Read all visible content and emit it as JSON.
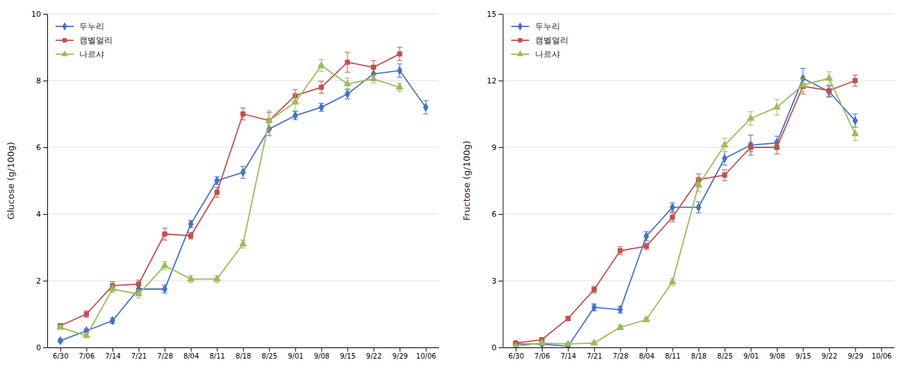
{
  "chart_data": [
    {
      "type": "line",
      "categories": [
        "6/30",
        "7/06",
        "7/14",
        "7/21",
        "7/28",
        "8/04",
        "8/11",
        "8/18",
        "8/25",
        "9/01",
        "9/08",
        "9/15",
        "9/22",
        "9/29",
        "10/06"
      ],
      "series": [
        {
          "name": "두누리",
          "color": "#4472C4",
          "marker": "diamond",
          "values": [
            0.2,
            0.5,
            0.8,
            1.75,
            1.75,
            3.7,
            5.0,
            5.25,
            6.55,
            6.95,
            7.2,
            7.6,
            8.2,
            8.3,
            7.2
          ],
          "errors": [
            0.05,
            0.05,
            0.08,
            0.12,
            0.12,
            0.1,
            0.12,
            0.18,
            0.2,
            0.12,
            0.12,
            0.15,
            0.2,
            0.2,
            0.2
          ]
        },
        {
          "name": "캠벨얼리",
          "color": "#C0504D",
          "marker": "square",
          "values": [
            0.65,
            1.0,
            1.85,
            1.9,
            3.4,
            3.35,
            4.65,
            7.0,
            6.8,
            7.55,
            7.8,
            8.55,
            8.4,
            8.8,
            null
          ],
          "errors": [
            0.07,
            0.1,
            0.12,
            0.12,
            0.18,
            0.1,
            0.15,
            0.18,
            0.25,
            0.18,
            0.18,
            0.3,
            0.2,
            0.2,
            null
          ]
        },
        {
          "name": "나르샤",
          "color": "#9BBB59",
          "marker": "triangle",
          "values": [
            0.6,
            0.35,
            1.75,
            1.6,
            2.45,
            2.05,
            2.05,
            3.1,
            6.8,
            7.35,
            8.45,
            7.9,
            8.05,
            7.8,
            null
          ],
          "errors": [
            0.05,
            0.05,
            0.1,
            0.12,
            0.12,
            0.1,
            0.1,
            0.12,
            0.3,
            0.25,
            0.18,
            0.18,
            0.12,
            0.12,
            null
          ]
        }
      ],
      "ylabel": "Glucose (g/100g)",
      "ylim": [
        0,
        10
      ],
      "yticks": [
        0,
        2,
        4,
        6,
        8,
        10
      ],
      "grid": true,
      "legend": "upper left"
    },
    {
      "type": "line",
      "categories": [
        "6/30",
        "7/06",
        "7/14",
        "7/21",
        "7/28",
        "8/04",
        "8/11",
        "8/18",
        "8/25",
        "9/01",
        "9/08",
        "9/15",
        "9/22",
        "9/29",
        "10/06"
      ],
      "series": [
        {
          "name": "두누리",
          "color": "#4472C4",
          "marker": "diamond",
          "values": [
            0.15,
            0.15,
            0.05,
            1.8,
            1.7,
            5.0,
            6.3,
            6.3,
            8.5,
            9.1,
            9.2,
            12.1,
            11.5,
            10.2,
            null
          ],
          "errors": [
            0.05,
            0.05,
            0.05,
            0.15,
            0.15,
            0.2,
            0.2,
            0.25,
            0.3,
            0.45,
            0.3,
            0.45,
            0.25,
            0.3,
            null
          ]
        },
        {
          "name": "캠벨얼리",
          "color": "#C0504D",
          "marker": "square",
          "values": [
            0.2,
            0.35,
            1.3,
            2.6,
            4.35,
            4.55,
            5.85,
            7.55,
            7.75,
            9.0,
            9.0,
            11.75,
            11.55,
            12.0,
            null
          ],
          "errors": [
            0.05,
            0.05,
            0.1,
            0.15,
            0.18,
            0.15,
            0.2,
            0.25,
            0.25,
            0.2,
            0.3,
            0.35,
            0.25,
            0.25,
            null
          ]
        },
        {
          "name": "나르샤",
          "color": "#9BBB59",
          "marker": "triangle",
          "values": [
            0.05,
            0.2,
            0.15,
            0.2,
            0.9,
            1.25,
            2.95,
            7.3,
            9.1,
            10.3,
            10.8,
            11.8,
            12.1,
            9.6,
            null
          ],
          "errors": [
            0.05,
            0.05,
            0.05,
            0.05,
            0.1,
            0.1,
            0.15,
            0.3,
            0.3,
            0.3,
            0.35,
            0.3,
            0.3,
            0.3,
            null
          ]
        }
      ],
      "ylabel": "Fructose (g/100g)",
      "ylim": [
        0,
        15
      ],
      "yticks": [
        0,
        3,
        6,
        9,
        12,
        15
      ],
      "grid": true,
      "legend": "upper left"
    }
  ]
}
